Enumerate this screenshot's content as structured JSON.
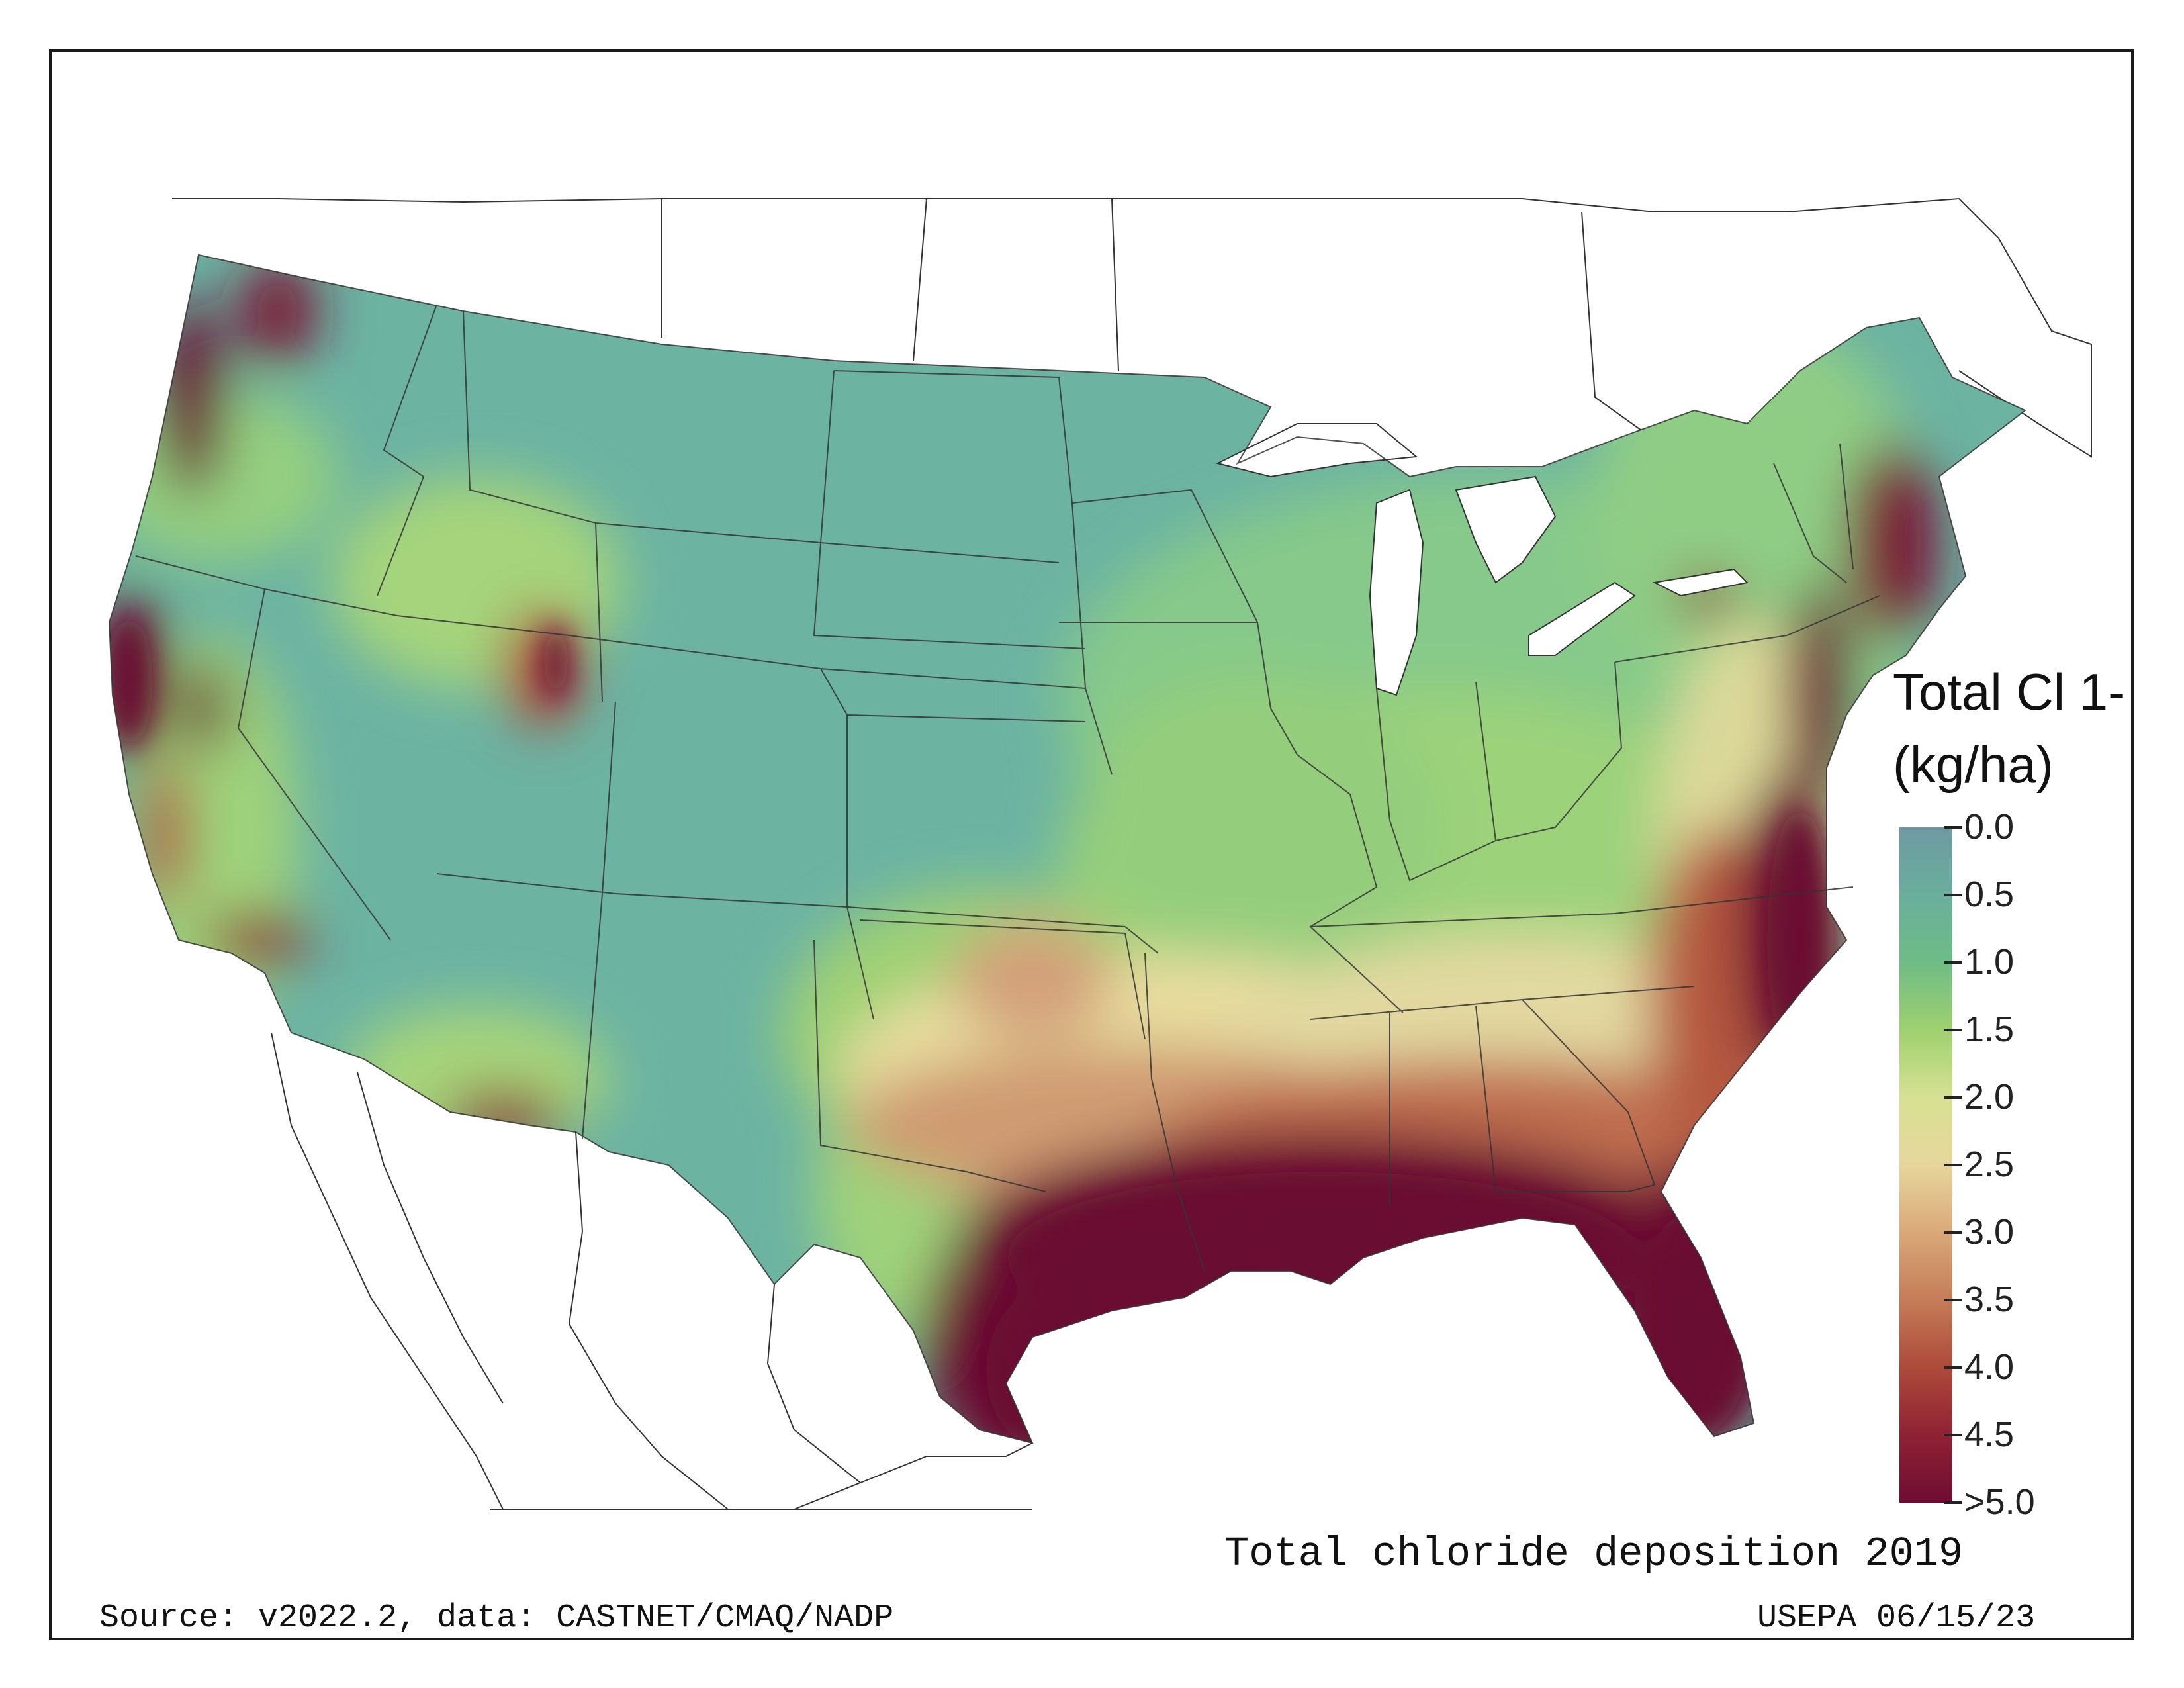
{
  "title": "Total chloride deposition 2019",
  "source": "Source: v2022.2, data: CASTNET/CMAQ/NADP",
  "credit": "USEPA 06/15/23",
  "legend": {
    "title_line1": "Total Cl 1-",
    "title_line2": "(kg/ha)",
    "ticks": [
      "0.0",
      "0.5",
      "1.0",
      "1.5",
      "2.0",
      "2.5",
      "3.0",
      "3.5",
      "4.0",
      "4.5",
      ">5.0"
    ],
    "colors": [
      "#6e9aa3",
      "#6aae9c",
      "#6fbc86",
      "#9fd06f",
      "#d7e193",
      "#e7d69c",
      "#d9a878",
      "#c47c58",
      "#ad4a3a",
      "#8e2234",
      "#6e0d33"
    ]
  },
  "colors": {
    "low": "#6cb3a2",
    "mid": "#8fcf7b",
    "high": "#6a0a33",
    "border": "#333333"
  }
}
